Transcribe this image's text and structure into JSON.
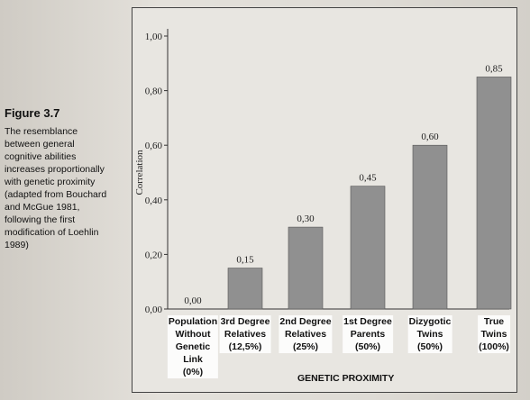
{
  "caption": {
    "figure": "Figure 3.7",
    "lines": [
      "The resemblance",
      "between general",
      "cognitive abilities",
      "increases proportionally",
      "with genetic proximity",
      "(adapted from Bouchard",
      "and McGue 1981,",
      "following the first",
      "modification of Loehlin",
      "1989)"
    ]
  },
  "chart_data": {
    "type": "bar",
    "categories": [
      [
        "Population",
        "Without",
        "Genetic",
        "Link",
        "(0%)"
      ],
      [
        "3rd Degree",
        "Relatives",
        "(12,5%)"
      ],
      [
        "2nd Degree",
        "Relatives",
        "(25%)"
      ],
      [
        "1st Degree",
        "Parents",
        "(50%)"
      ],
      [
        "Dizygotic",
        "Twins",
        "(50%)"
      ],
      [
        "True",
        "Twins",
        "(100%)"
      ]
    ],
    "values": [
      0.0,
      0.15,
      0.3,
      0.45,
      0.6,
      0.85
    ],
    "value_labels": [
      "0,00",
      "0,15",
      "0,30",
      "0,45",
      "0,60",
      "0,85"
    ],
    "yticks": [
      0.0,
      0.2,
      0.4,
      0.6,
      0.8,
      1.0
    ],
    "ytick_labels": [
      "0,00",
      "0,20",
      "0,40",
      "0,60",
      "0,80",
      "1,00"
    ],
    "ylabel": "Correlation",
    "xlabel": "GENETIC PROXIMITY",
    "ylim": [
      0,
      1.0
    ],
    "bar_color": "#909090"
  }
}
